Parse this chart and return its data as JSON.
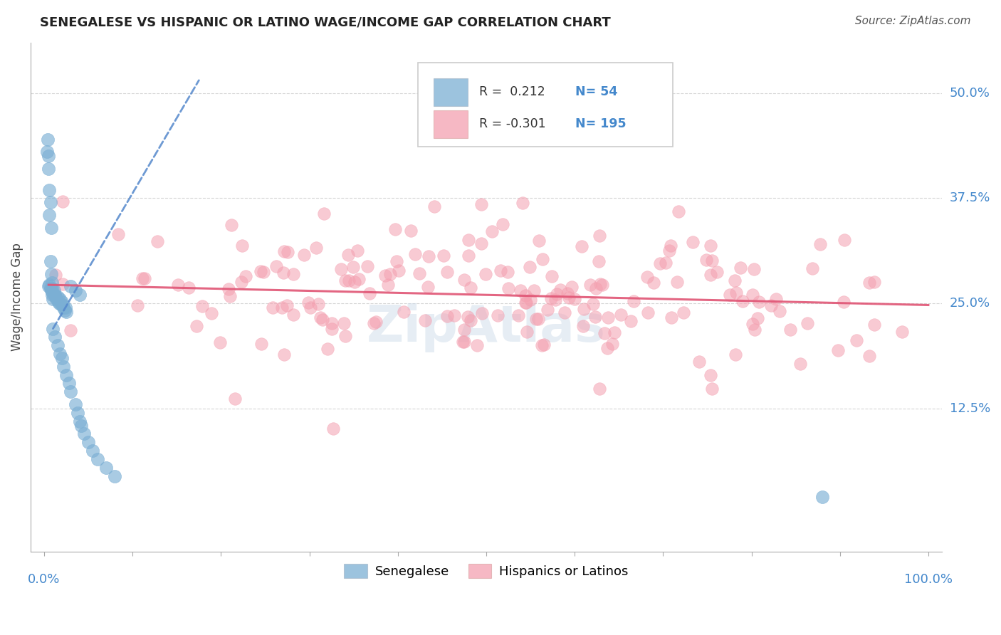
{
  "title": "SENEGALESE VS HISPANIC OR LATINO WAGE/INCOME GAP CORRELATION CHART",
  "source": "Source: ZipAtlas.com",
  "ylabel": "Wage/Income Gap",
  "grid_color": "#cccccc",
  "background_color": "#ffffff",
  "legend_r_blue": " 0.212",
  "legend_n_blue": "54",
  "legend_r_pink": "-0.301",
  "legend_n_pink": "195",
  "blue_color": "#7bafd4",
  "pink_color": "#f4a0b0",
  "blue_trend_color": "#5588cc",
  "pink_trend_color": "#e05575",
  "title_color": "#222222",
  "label_color": "#4488cc",
  "source_color": "#555555",
  "ytick_vals": [
    0.0,
    0.125,
    0.25,
    0.375,
    0.5
  ],
  "ytick_labels": [
    "",
    "12.5%",
    "25.0%",
    "37.5%",
    "50.0%"
  ],
  "xlim": [
    -0.015,
    1.015
  ],
  "ylim": [
    -0.045,
    0.56
  ]
}
